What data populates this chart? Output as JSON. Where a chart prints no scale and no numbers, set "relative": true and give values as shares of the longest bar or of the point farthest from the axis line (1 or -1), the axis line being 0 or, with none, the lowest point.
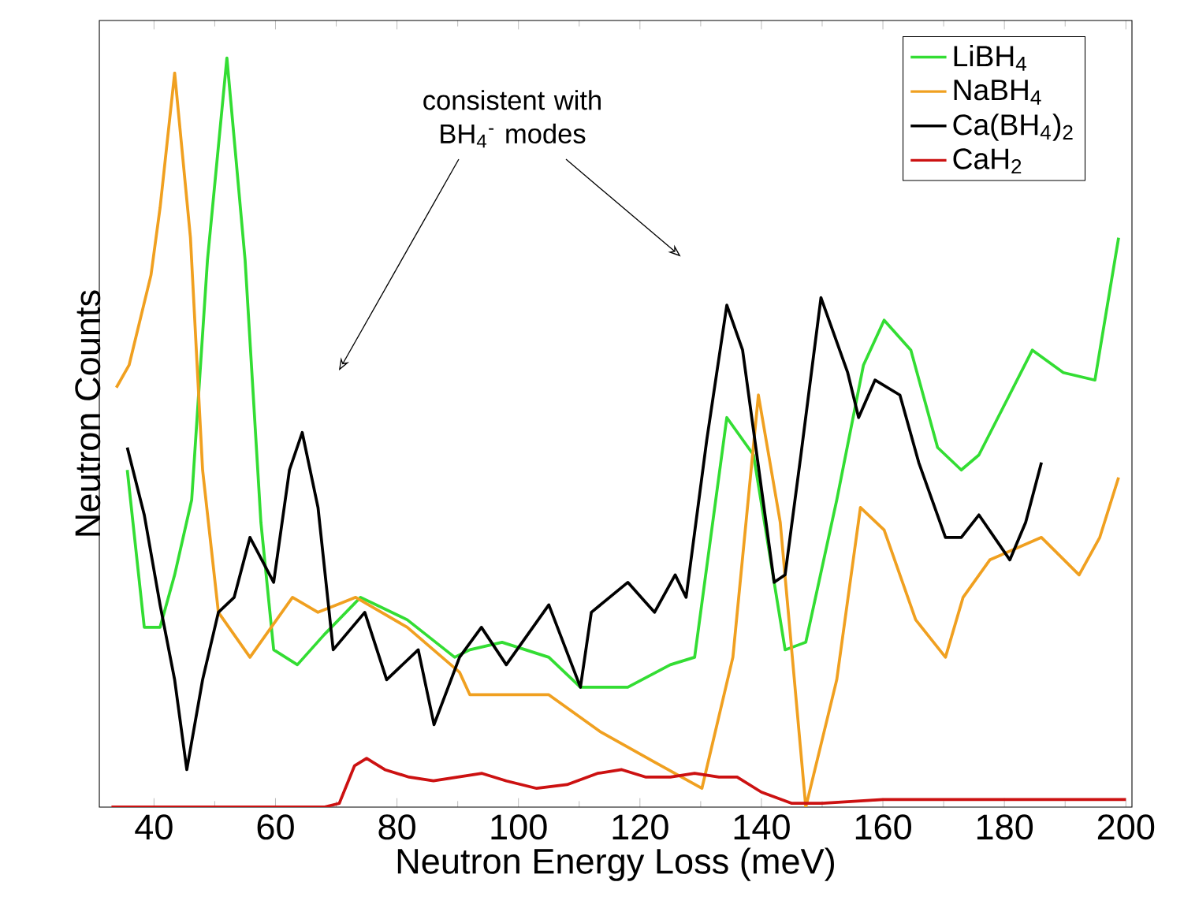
{
  "chart_data": {
    "type": "line",
    "relative": true,
    "xlabel": "Neutron Energy Loss (meV)",
    "ylabel": "Neutron Counts",
    "xlim": [
      31,
      201
    ],
    "xticks": [
      40,
      60,
      80,
      100,
      120,
      140,
      160,
      180,
      200
    ],
    "legend": "top right",
    "grid": false,
    "annotations": [
      "consistent with BH$_{4}$$^{-}$ modes"
    ],
    "series": [
      {
        "name": "LiBH$_{4}$",
        "color": "#33dd33",
        "x": [
          35.6,
          38.4,
          41,
          43.4,
          46.2,
          48.8,
          52,
          55,
          57.6,
          59.7,
          63.6,
          68,
          74,
          81.7,
          89.5,
          92,
          97.3,
          105,
          110.2,
          118,
          125,
          129,
          134.3,
          138.7,
          143.9,
          147.3,
          152.4,
          156.8,
          160.2,
          164.6,
          169,
          172.9,
          175.8,
          180.2,
          184.6,
          189.7,
          194.9,
          198.8
        ],
        "values": [
          0.45,
          0.24,
          0.24,
          0.31,
          0.41,
          0.73,
          1.0,
          0.73,
          0.38,
          0.21,
          0.19,
          0.23,
          0.28,
          0.25,
          0.2,
          0.21,
          0.22,
          0.2,
          0.16,
          0.16,
          0.19,
          0.2,
          0.52,
          0.47,
          0.21,
          0.22,
          0.41,
          0.59,
          0.65,
          0.61,
          0.48,
          0.45,
          0.47,
          0.54,
          0.61,
          0.58,
          0.57,
          0.76
        ]
      },
      {
        "name": "NaBH$_{4}$",
        "color": "#f0a020",
        "x": [
          33.8,
          35.9,
          39.5,
          41,
          43.4,
          46,
          48,
          50.6,
          55.8,
          62.8,
          67,
          73.2,
          81.7,
          90.3,
          92,
          105,
          113.6,
          122.4,
          130.2,
          135.3,
          139.5,
          143.1,
          147.3,
          152.4,
          156.3,
          160.2,
          165.4,
          170.3,
          173.2,
          177.6,
          186.1,
          192.3,
          195.7,
          198.8
        ],
        "values": [
          0.56,
          0.59,
          0.71,
          0.8,
          0.98,
          0.76,
          0.45,
          0.26,
          0.2,
          0.28,
          0.26,
          0.28,
          0.24,
          0.18,
          0.15,
          0.15,
          0.1,
          0.06,
          0.025,
          0.2,
          0.55,
          0.38,
          0.0,
          0.17,
          0.4,
          0.37,
          0.25,
          0.2,
          0.28,
          0.33,
          0.36,
          0.31,
          0.36,
          0.44
        ]
      },
      {
        "name": "Ca(BH$_{4}$)$_{2}$",
        "color": "#000000",
        "x": [
          35.6,
          38.4,
          41,
          43.4,
          45.4,
          48,
          50.6,
          53.2,
          55.8,
          59.7,
          62.3,
          64.4,
          67,
          69.5,
          74.7,
          78.3,
          83.5,
          86.1,
          90.3,
          93.9,
          98,
          105,
          110.2,
          112,
          118,
          122.4,
          125.8,
          127.6,
          131,
          134.3,
          136.9,
          142.1,
          143.9,
          146.5,
          149.8,
          154.2,
          156,
          158.7,
          162.8,
          165.9,
          170.3,
          172.9,
          175.8,
          180.9,
          183.5,
          186.1
        ],
        "values": [
          0.48,
          0.39,
          0.27,
          0.17,
          0.05,
          0.17,
          0.26,
          0.28,
          0.36,
          0.3,
          0.45,
          0.5,
          0.4,
          0.21,
          0.26,
          0.17,
          0.21,
          0.11,
          0.2,
          0.24,
          0.19,
          0.27,
          0.16,
          0.26,
          0.3,
          0.26,
          0.31,
          0.28,
          0.49,
          0.67,
          0.61,
          0.3,
          0.31,
          0.47,
          0.68,
          0.58,
          0.52,
          0.57,
          0.55,
          0.46,
          0.36,
          0.36,
          0.39,
          0.33,
          0.38,
          0.46
        ]
      },
      {
        "name": "CaH$_{2}$",
        "color": "#cc1111",
        "x": [
          33,
          68,
          70.5,
          73,
          75,
          78,
          82,
          86,
          90,
          94,
          98,
          103,
          108,
          113,
          117,
          121,
          125,
          129,
          133,
          136,
          140,
          145,
          150,
          160,
          180,
          200
        ],
        "values": [
          0.0,
          0.0,
          0.005,
          0.055,
          0.065,
          0.05,
          0.04,
          0.035,
          0.04,
          0.045,
          0.035,
          0.025,
          0.03,
          0.045,
          0.05,
          0.04,
          0.04,
          0.045,
          0.04,
          0.04,
          0.02,
          0.005,
          0.005,
          0.01,
          0.01,
          0.01
        ]
      }
    ]
  }
}
